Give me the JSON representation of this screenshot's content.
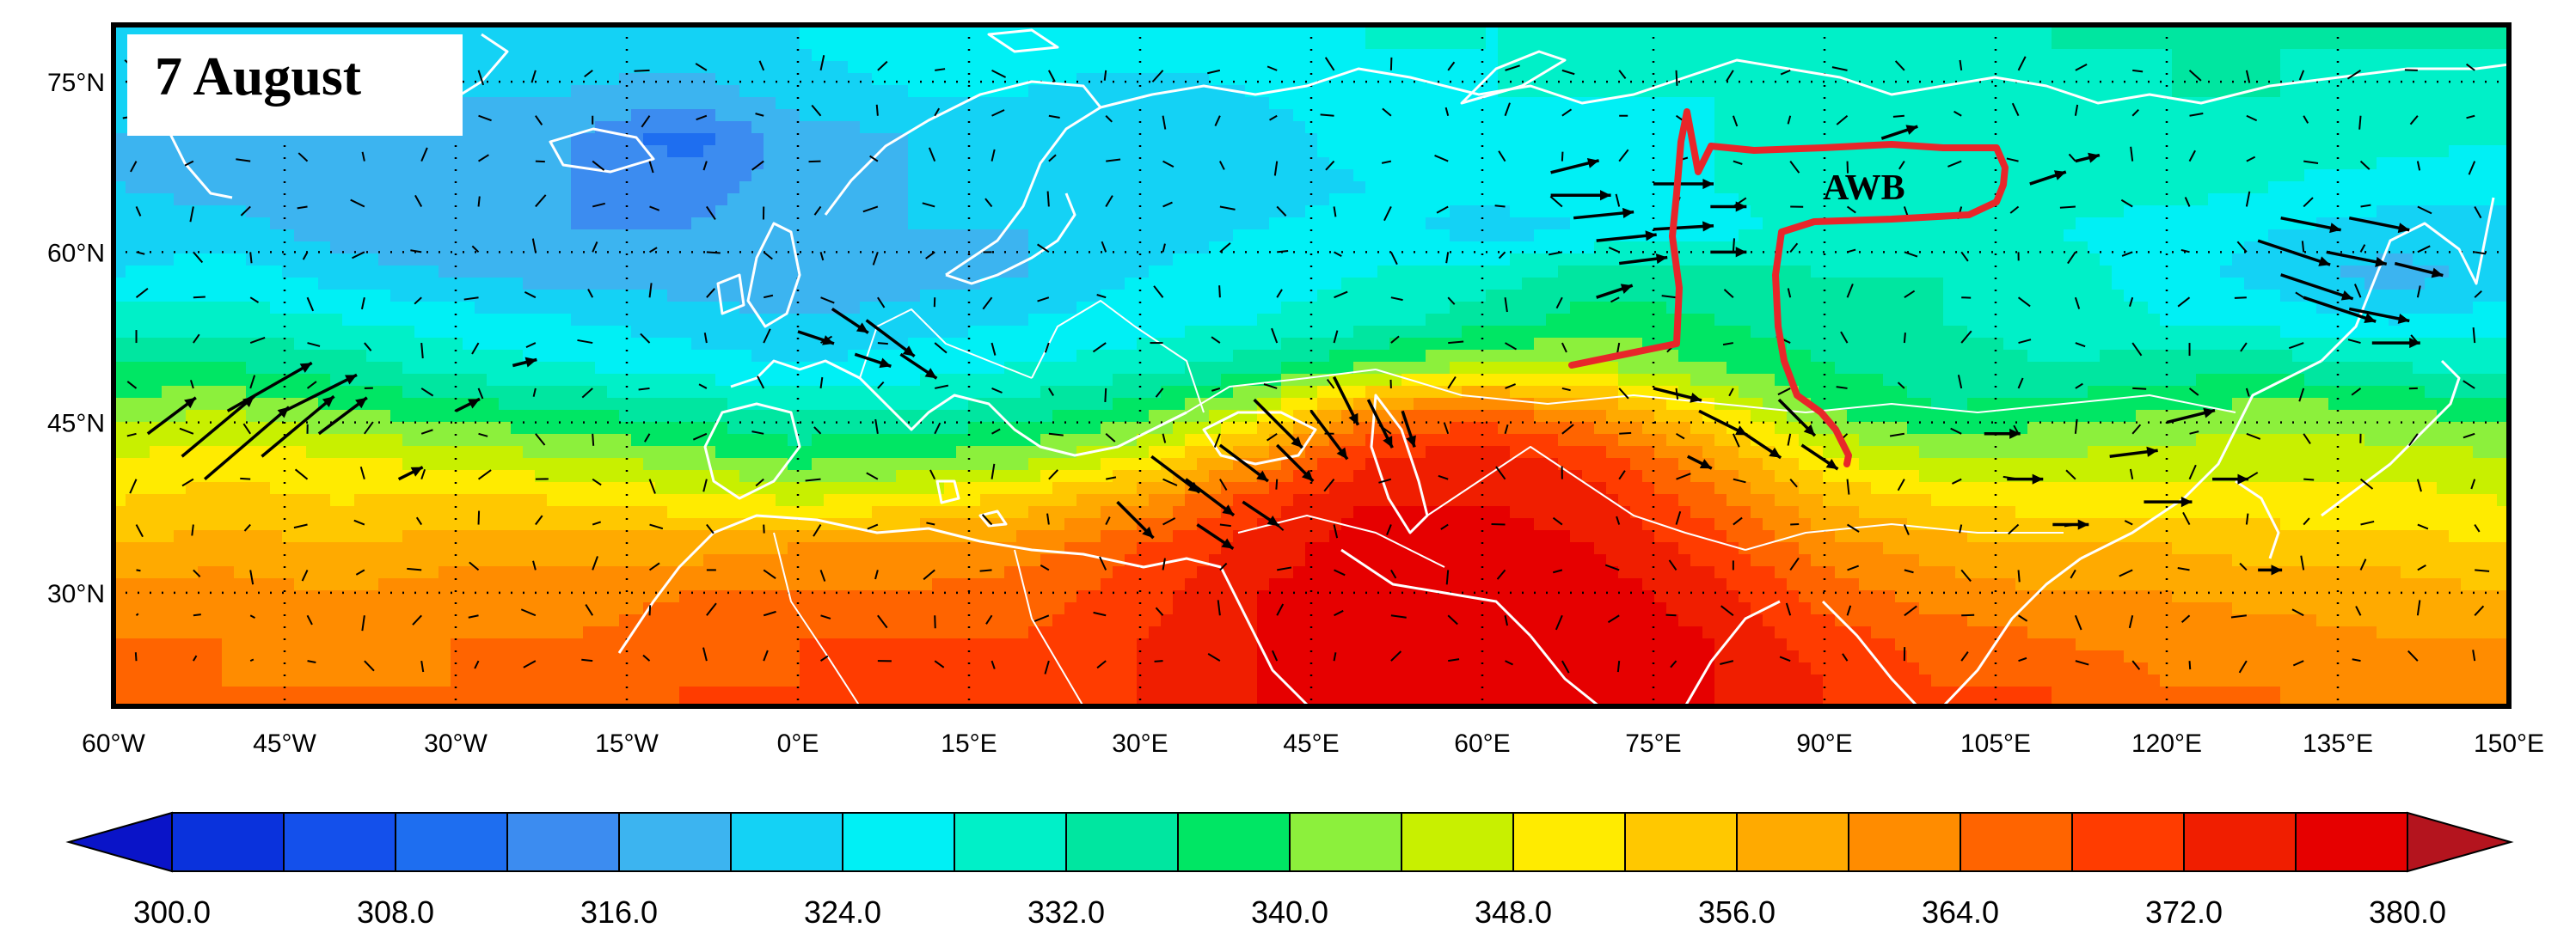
{
  "title": "7 August",
  "annotation": {
    "label": "AWB",
    "color": "#e8262a"
  },
  "map": {
    "lon_range": [
      -60,
      150
    ],
    "lat_range": [
      20,
      80
    ],
    "lat_ticks": [
      {
        "value": 75,
        "label": "75°N"
      },
      {
        "value": 60,
        "label": "60°N"
      },
      {
        "value": 45,
        "label": "45°N"
      },
      {
        "value": 30,
        "label": "30°N"
      }
    ],
    "lon_ticks": [
      {
        "value": -60,
        "label": "60°W"
      },
      {
        "value": -45,
        "label": "45°W"
      },
      {
        "value": -30,
        "label": "30°W"
      },
      {
        "value": -15,
        "label": "15°W"
      },
      {
        "value": 0,
        "label": "0°E"
      },
      {
        "value": 15,
        "label": "15°E"
      },
      {
        "value": 30,
        "label": "30°E"
      },
      {
        "value": 45,
        "label": "45°E"
      },
      {
        "value": 60,
        "label": "60°E"
      },
      {
        "value": 75,
        "label": "75°E"
      },
      {
        "value": 90,
        "label": "90°E"
      },
      {
        "value": 105,
        "label": "105°E"
      },
      {
        "value": 120,
        "label": "120°E"
      },
      {
        "value": 135,
        "label": "135°E"
      },
      {
        "value": 150,
        "label": "150°E"
      }
    ]
  },
  "colorbar": {
    "min": 300,
    "max": 380,
    "step": 4,
    "colors": [
      "#0a14c8",
      "#0a32dc",
      "#1450eb",
      "#1e6ef0",
      "#3c8cf0",
      "#3cb4f0",
      "#14d2f5",
      "#00f0f5",
      "#00f0c8",
      "#00e6a0",
      "#00e664",
      "#8cf03c",
      "#c8f000",
      "#ffeb00",
      "#ffc800",
      "#ffaa00",
      "#ff8c00",
      "#ff6400",
      "#ff3c00",
      "#f01e00",
      "#e60000",
      "#b4141e"
    ],
    "labels": [
      "300.0",
      "308.0",
      "316.0",
      "324.0",
      "332.0",
      "340.0",
      "348.0",
      "356.0",
      "364.0",
      "372.0",
      "380.0"
    ]
  },
  "field": {
    "lat_rows": [
      22,
      26,
      30,
      34,
      38,
      42,
      46,
      50,
      54,
      58,
      62,
      66,
      70,
      74,
      78
    ],
    "lon_cols": [
      -60,
      -50,
      -40,
      -30,
      -20,
      -10,
      0,
      10,
      20,
      30,
      40,
      50,
      60,
      70,
      80,
      90,
      100,
      110,
      120,
      130,
      140,
      150
    ],
    "values": [
      [
        364,
        364,
        364,
        364,
        364,
        368,
        368,
        368,
        368,
        372,
        376,
        378,
        378,
        378,
        376,
        372,
        368,
        368,
        364,
        364,
        362,
        360
      ],
      [
        364,
        364,
        362,
        364,
        364,
        366,
        368,
        368,
        368,
        372,
        376,
        378,
        380,
        378,
        376,
        370,
        366,
        364,
        362,
        362,
        360,
        360
      ],
      [
        362,
        362,
        360,
        362,
        362,
        364,
        364,
        364,
        366,
        370,
        376,
        378,
        380,
        378,
        374,
        366,
        362,
        360,
        360,
        358,
        358,
        356
      ],
      [
        356,
        358,
        356,
        358,
        358,
        358,
        360,
        362,
        362,
        368,
        374,
        378,
        378,
        376,
        370,
        362,
        358,
        356,
        356,
        354,
        354,
        352
      ],
      [
        352,
        354,
        352,
        354,
        352,
        350,
        348,
        350,
        354,
        360,
        370,
        376,
        376,
        374,
        366,
        356,
        352,
        350,
        350,
        350,
        350,
        348
      ],
      [
        348,
        350,
        348,
        346,
        344,
        342,
        338,
        340,
        342,
        348,
        360,
        372,
        374,
        370,
        360,
        348,
        344,
        344,
        346,
        346,
        346,
        344
      ],
      [
        342,
        344,
        340,
        338,
        336,
        334,
        332,
        332,
        334,
        338,
        346,
        362,
        366,
        360,
        350,
        340,
        336,
        338,
        340,
        342,
        340,
        338
      ],
      [
        336,
        336,
        334,
        330,
        328,
        326,
        324,
        326,
        328,
        330,
        334,
        340,
        344,
        344,
        340,
        336,
        334,
        332,
        334,
        334,
        332,
        330
      ],
      [
        330,
        330,
        328,
        326,
        324,
        322,
        320,
        322,
        324,
        326,
        328,
        330,
        334,
        338,
        336,
        334,
        332,
        330,
        328,
        326,
        324,
        326
      ],
      [
        324,
        326,
        322,
        320,
        318,
        318,
        316,
        318,
        320,
        324,
        326,
        328,
        330,
        334,
        334,
        332,
        332,
        330,
        326,
        322,
        318,
        322
      ],
      [
        322,
        322,
        318,
        316,
        316,
        316,
        318,
        320,
        320,
        322,
        324,
        326,
        322,
        324,
        326,
        330,
        330,
        328,
        326,
        324,
        322,
        324
      ],
      [
        320,
        318,
        316,
        318,
        316,
        314,
        318,
        320,
        320,
        322,
        322,
        324,
        326,
        328,
        328,
        330,
        330,
        330,
        330,
        328,
        326,
        324
      ],
      [
        320,
        318,
        316,
        318,
        316,
        310,
        318,
        320,
        322,
        320,
        322,
        326,
        326,
        326,
        328,
        328,
        330,
        330,
        330,
        330,
        330,
        328
      ],
      [
        322,
        318,
        318,
        320,
        320,
        318,
        322,
        324,
        324,
        322,
        324,
        326,
        328,
        328,
        328,
        328,
        330,
        330,
        332,
        332,
        330,
        330
      ],
      [
        324,
        322,
        320,
        322,
        322,
        322,
        324,
        326,
        326,
        326,
        326,
        328,
        328,
        328,
        330,
        330,
        330,
        332,
        332,
        332,
        332,
        332
      ]
    ]
  },
  "wind_vectors": [
    {
      "lon": -57,
      "lat": 44,
      "u": 4,
      "v": 3
    },
    {
      "lon": -54,
      "lat": 42,
      "u": 6,
      "v": 5
    },
    {
      "lon": -52,
      "lat": 40,
      "u": 7,
      "v": 6
    },
    {
      "lon": -50,
      "lat": 46,
      "u": 7,
      "v": 4
    },
    {
      "lon": -47,
      "lat": 42,
      "u": 6,
      "v": 5
    },
    {
      "lon": -45,
      "lat": 46,
      "u": 6,
      "v": 3
    },
    {
      "lon": -42,
      "lat": 44,
      "u": 4,
      "v": 3
    },
    {
      "lon": -35,
      "lat": 40,
      "u": 2,
      "v": 1
    },
    {
      "lon": -30,
      "lat": 46,
      "u": 2,
      "v": 1
    },
    {
      "lon": -25,
      "lat": 50,
      "u": 2,
      "v": 0.5
    },
    {
      "lon": 3,
      "lat": 55,
      "u": 3,
      "v": -2
    },
    {
      "lon": 6,
      "lat": 54,
      "u": 4,
      "v": -3
    },
    {
      "lon": 9,
      "lat": 51,
      "u": 3,
      "v": -2
    },
    {
      "lon": 5,
      "lat": 51,
      "u": 3,
      "v": -1
    },
    {
      "lon": 0,
      "lat": 53,
      "u": 3,
      "v": -1
    },
    {
      "lon": 28,
      "lat": 38,
      "u": 3,
      "v": -3
    },
    {
      "lon": 31,
      "lat": 42,
      "u": 4,
      "v": -3
    },
    {
      "lon": 34,
      "lat": 40,
      "u": 4,
      "v": -3
    },
    {
      "lon": 37,
      "lat": 43,
      "u": 4,
      "v": -3
    },
    {
      "lon": 40,
      "lat": 47,
      "u": 4,
      "v": -4
    },
    {
      "lon": 42,
      "lat": 43,
      "u": 3,
      "v": -3
    },
    {
      "lon": 45,
      "lat": 46,
      "u": 3,
      "v": -4
    },
    {
      "lon": 47,
      "lat": 49,
      "u": 2,
      "v": -4
    },
    {
      "lon": 50,
      "lat": 47,
      "u": 2,
      "v": -4
    },
    {
      "lon": 53,
      "lat": 46,
      "u": 1,
      "v": -3
    },
    {
      "lon": 35,
      "lat": 36,
      "u": 3,
      "v": -2
    },
    {
      "lon": 39,
      "lat": 38,
      "u": 3,
      "v": -2
    },
    {
      "lon": 66,
      "lat": 65,
      "u": 5,
      "v": 0
    },
    {
      "lon": 68,
      "lat": 63,
      "u": 5,
      "v": 0.5
    },
    {
      "lon": 70,
      "lat": 61,
      "u": 5,
      "v": 0.5
    },
    {
      "lon": 72,
      "lat": 59,
      "u": 4,
      "v": 0.5
    },
    {
      "lon": 75,
      "lat": 66,
      "u": 5,
      "v": 0
    },
    {
      "lon": 75,
      "lat": 62,
      "u": 5,
      "v": 0.3
    },
    {
      "lon": 80,
      "lat": 64,
      "u": 3,
      "v": 0
    },
    {
      "lon": 80,
      "lat": 60,
      "u": 3,
      "v": 0
    },
    {
      "lon": 70,
      "lat": 56,
      "u": 3,
      "v": 1
    },
    {
      "lon": 66,
      "lat": 67,
      "u": 4,
      "v": 1
    },
    {
      "lon": 75,
      "lat": 48,
      "u": 4,
      "v": -1
    },
    {
      "lon": 79,
      "lat": 46,
      "u": 4,
      "v": -2
    },
    {
      "lon": 83,
      "lat": 44,
      "u": 3,
      "v": -2
    },
    {
      "lon": 86,
      "lat": 47,
      "u": 3,
      "v": -3
    },
    {
      "lon": 88,
      "lat": 43,
      "u": 3,
      "v": -2
    },
    {
      "lon": 78,
      "lat": 42,
      "u": 2,
      "v": -1
    },
    {
      "lon": 104,
      "lat": 44,
      "u": 3,
      "v": 0
    },
    {
      "lon": 106,
      "lat": 40,
      "u": 3,
      "v": 0
    },
    {
      "lon": 110,
      "lat": 36,
      "u": 3,
      "v": 0
    },
    {
      "lon": 115,
      "lat": 42,
      "u": 4,
      "v": 0.5
    },
    {
      "lon": 120,
      "lat": 45,
      "u": 4,
      "v": 1
    },
    {
      "lon": 118,
      "lat": 38,
      "u": 4,
      "v": 0
    },
    {
      "lon": 124,
      "lat": 40,
      "u": 3,
      "v": 0
    },
    {
      "lon": 128,
      "lat": 32,
      "u": 2,
      "v": 0
    },
    {
      "lon": 128,
      "lat": 61,
      "u": 6,
      "v": -2
    },
    {
      "lon": 130,
      "lat": 58,
      "u": 6,
      "v": -2
    },
    {
      "lon": 132,
      "lat": 56,
      "u": 6,
      "v": -2
    },
    {
      "lon": 130,
      "lat": 63,
      "u": 5,
      "v": -1
    },
    {
      "lon": 134,
      "lat": 60,
      "u": 5,
      "v": -1
    },
    {
      "lon": 136,
      "lat": 55,
      "u": 5,
      "v": -1
    },
    {
      "lon": 136,
      "lat": 63,
      "u": 5,
      "v": -1
    },
    {
      "lon": 140,
      "lat": 59,
      "u": 4,
      "v": -1
    },
    {
      "lon": 138,
      "lat": 52,
      "u": 4,
      "v": 0
    },
    {
      "lon": 108,
      "lat": 66,
      "u": 3,
      "v": 1
    },
    {
      "lon": 112,
      "lat": 68,
      "u": 2,
      "v": 0.5
    },
    {
      "lon": 95,
      "lat": 70,
      "u": 3,
      "v": 1
    }
  ]
}
